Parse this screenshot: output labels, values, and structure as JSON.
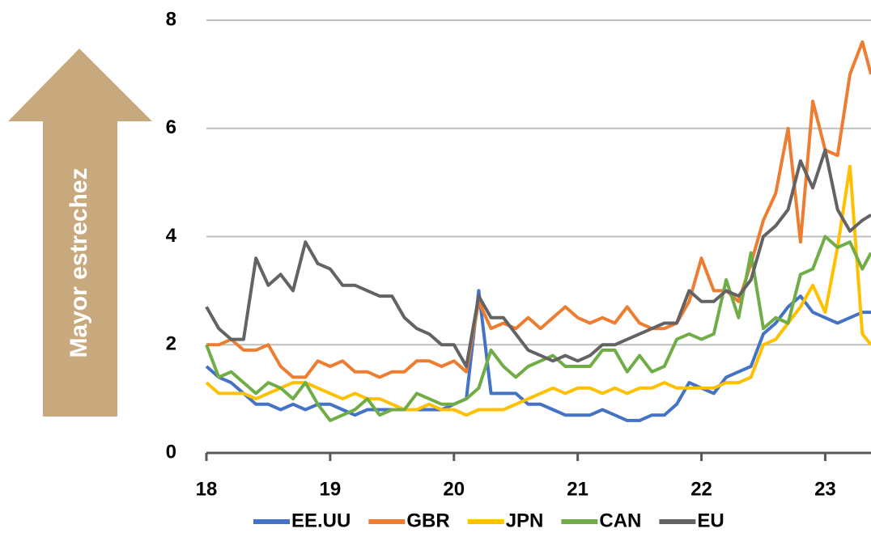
{
  "chart_data": {
    "type": "line",
    "annotation": "Mayor estrechez",
    "x": [
      18.0,
      18.1,
      18.2,
      18.3,
      18.4,
      18.5,
      18.6,
      18.7,
      18.8,
      18.9,
      19.0,
      19.1,
      19.2,
      19.3,
      19.4,
      19.5,
      19.6,
      19.7,
      19.8,
      19.9,
      20.0,
      20.1,
      20.2,
      20.3,
      20.4,
      20.5,
      20.6,
      20.7,
      20.8,
      20.9,
      21.0,
      21.1,
      21.2,
      21.3,
      21.4,
      21.5,
      21.6,
      21.7,
      21.8,
      21.9,
      22.0,
      22.1,
      22.2,
      22.3,
      22.4,
      22.5,
      22.6,
      22.7,
      22.8,
      22.9,
      23.0,
      23.1,
      23.2,
      23.3,
      23.37
    ],
    "series": [
      {
        "name": "EE.UU",
        "color": "#4472c4",
        "values": [
          1.6,
          1.4,
          1.3,
          1.1,
          0.9,
          0.9,
          0.8,
          0.9,
          0.8,
          0.9,
          0.9,
          0.8,
          0.7,
          0.8,
          0.8,
          0.8,
          0.8,
          0.8,
          0.8,
          0.8,
          0.9,
          1.0,
          3.0,
          1.1,
          1.1,
          1.1,
          0.9,
          0.9,
          0.8,
          0.7,
          0.7,
          0.7,
          0.8,
          0.7,
          0.6,
          0.6,
          0.7,
          0.7,
          0.9,
          1.3,
          1.2,
          1.1,
          1.4,
          1.5,
          1.6,
          2.2,
          2.4,
          2.7,
          2.9,
          2.6,
          2.5,
          2.4,
          2.5,
          2.6,
          2.6
        ]
      },
      {
        "name": "GBR",
        "color": "#ed7d31",
        "values": [
          2.0,
          2.0,
          2.1,
          1.9,
          1.9,
          2.0,
          1.6,
          1.4,
          1.4,
          1.7,
          1.6,
          1.7,
          1.5,
          1.5,
          1.4,
          1.5,
          1.5,
          1.7,
          1.7,
          1.6,
          1.7,
          1.5,
          2.8,
          2.3,
          2.4,
          2.3,
          2.5,
          2.3,
          2.5,
          2.7,
          2.5,
          2.4,
          2.5,
          2.4,
          2.7,
          2.4,
          2.3,
          2.3,
          2.4,
          2.8,
          3.6,
          3.0,
          3.0,
          2.8,
          3.5,
          4.3,
          4.8,
          6.0,
          3.9,
          6.5,
          5.6,
          5.5,
          7.0,
          7.6,
          7.0
        ]
      },
      {
        "name": "JPN",
        "color": "#ffc000",
        "values": [
          1.3,
          1.1,
          1.1,
          1.1,
          1.0,
          1.1,
          1.2,
          1.3,
          1.3,
          1.2,
          1.1,
          1.0,
          1.1,
          1.0,
          1.0,
          0.9,
          0.8,
          0.8,
          0.9,
          0.8,
          0.8,
          0.7,
          0.8,
          0.8,
          0.8,
          0.9,
          1.0,
          1.1,
          1.2,
          1.1,
          1.2,
          1.2,
          1.1,
          1.2,
          1.1,
          1.2,
          1.2,
          1.3,
          1.2,
          1.2,
          1.2,
          1.2,
          1.3,
          1.3,
          1.4,
          2.0,
          2.1,
          2.4,
          2.7,
          3.1,
          2.6,
          3.8,
          5.3,
          2.2,
          2.0
        ]
      },
      {
        "name": "CAN",
        "color": "#70ad47",
        "values": [
          2.0,
          1.4,
          1.5,
          1.3,
          1.1,
          1.3,
          1.2,
          1.0,
          1.3,
          0.9,
          0.6,
          0.7,
          0.8,
          1.0,
          0.7,
          0.8,
          0.8,
          1.1,
          1.0,
          0.9,
          0.9,
          1.0,
          1.2,
          1.9,
          1.6,
          1.4,
          1.6,
          1.7,
          1.8,
          1.6,
          1.6,
          1.6,
          1.9,
          1.9,
          1.5,
          1.8,
          1.5,
          1.6,
          2.1,
          2.2,
          2.1,
          2.2,
          3.2,
          2.5,
          3.7,
          2.3,
          2.5,
          2.4,
          3.3,
          3.4,
          4.0,
          3.8,
          3.9,
          3.4,
          3.7
        ]
      },
      {
        "name": "EU",
        "color": "#636363",
        "values": [
          2.7,
          2.3,
          2.1,
          2.1,
          3.6,
          3.1,
          3.3,
          3.0,
          3.9,
          3.5,
          3.4,
          3.1,
          3.1,
          3.0,
          2.9,
          2.9,
          2.5,
          2.3,
          2.2,
          2.0,
          2.0,
          1.6,
          2.9,
          2.5,
          2.5,
          2.2,
          1.9,
          1.8,
          1.7,
          1.8,
          1.7,
          1.8,
          2.0,
          2.0,
          2.1,
          2.2,
          2.3,
          2.4,
          2.4,
          3.0,
          2.8,
          2.8,
          3.0,
          2.9,
          3.2,
          4.0,
          4.2,
          4.5,
          5.4,
          4.9,
          5.6,
          4.5,
          4.1,
          4.3,
          4.4
        ]
      }
    ],
    "xlim": [
      18,
      23.37
    ],
    "xticks": [
      18,
      19,
      20,
      21,
      22,
      23
    ],
    "ylim": [
      0,
      8
    ],
    "yticks": [
      0,
      2,
      4,
      6,
      8
    ],
    "grid": true,
    "legend": "bottom"
  }
}
